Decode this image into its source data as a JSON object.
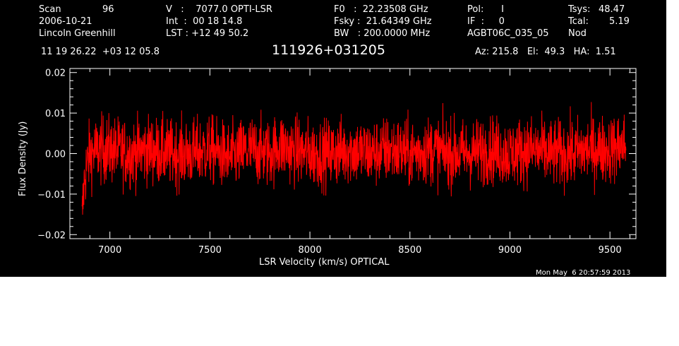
{
  "header": {
    "col1": {
      "scan_label": "Scan",
      "scan_value": "96",
      "date": "2006-10-21",
      "observer": "Lincoln Greenhill"
    },
    "col2": {
      "v": "V   :    7077.0 OPTI-LSR",
      "int": "Int  :  00 18 14.8",
      "lst": "LST : +12 49 50.2"
    },
    "col3": {
      "f0": "F0   :  22.23508 GHz",
      "fsky": "Fsky :  21.64349 GHz",
      "bw": "BW   : 200.0000 MHz"
    },
    "col4": {
      "pol": "Pol:      I",
      "if": "IF  :     0",
      "proj": "AGBT06C_035_05"
    },
    "col5": {
      "tsys_label": "Tsys:",
      "tsys_value": "48.47",
      "tcal_label": "Tcal:",
      "tcal_value": "5.19",
      "mode": "Nod"
    },
    "coords": "11 19 26.22  +03 12 05.8",
    "source": "111926+031205",
    "pointing": "Az: 215.8   El:  49.3   HA:  1.51"
  },
  "footer": {
    "timestamp": "Mon May  6 20:57:59 2013"
  },
  "colors": {
    "background": "#000000",
    "axes": "#ffffff",
    "trace": "#ff0000"
  },
  "chart_data": {
    "type": "line",
    "xlabel": "LSR Velocity (km/s) OPTICAL",
    "ylabel": "Flux Density (Jy)",
    "xlim": [
      6800,
      9630
    ],
    "ylim": [
      -0.021,
      0.021
    ],
    "xticks": [
      7000,
      7500,
      8000,
      8500,
      9000,
      9500
    ],
    "xtick_labels": [
      "7000",
      "7500",
      "8000",
      "8500",
      "9000",
      "9500"
    ],
    "yticks": [
      -0.02,
      -0.01,
      0.0,
      0.01,
      0.02
    ],
    "ytick_labels": [
      "−0.02",
      "−0.01",
      "0.00",
      "0.01",
      "0.02"
    ],
    "grid": false,
    "series": [
      {
        "color": "#ff0000",
        "x": [
          6860,
          6870,
          6880,
          6900,
          6950,
          7000,
          7100,
          7200,
          7300,
          7400,
          7500,
          7550,
          7600,
          7700,
          7800,
          7850,
          7900,
          8000,
          8100,
          8200,
          8300,
          8400,
          8500,
          8600,
          8700,
          8800,
          8900,
          9000,
          9100,
          9200,
          9300,
          9400,
          9500,
          9560,
          9580
        ],
        "y": [
          -0.017,
          -0.008,
          -0.004,
          0.0,
          0.001,
          0.001,
          0.0,
          0.001,
          0.0,
          0.0,
          0.001,
          0.0,
          -0.001,
          0.001,
          0.0,
          0.002,
          0.001,
          0.0,
          0.0,
          0.001,
          0.0,
          0.001,
          0.0,
          0.001,
          0.0,
          0.0,
          0.001,
          0.0,
          0.001,
          0.0,
          0.0,
          0.001,
          0.001,
          0.002,
          0.002
        ]
      }
    ]
  }
}
